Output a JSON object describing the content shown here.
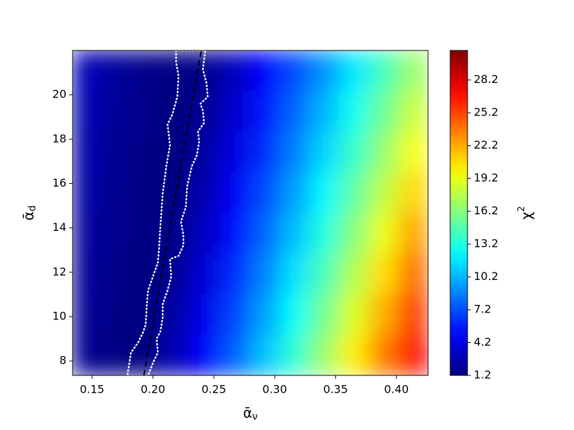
{
  "chart_data": {
    "type": "contour",
    "xlabel": {
      "text": "ᾱ",
      "sub": "ν"
    },
    "ylabel": {
      "text": "ᾱ",
      "sub": "d"
    },
    "colorbar_label": {
      "text": "χ",
      "sup": "2"
    },
    "colormap": "jet",
    "xlim": [
      0.134,
      0.426
    ],
    "ylim": [
      7.35,
      22
    ],
    "clim": [
      1.2,
      30.9
    ],
    "xticks": [
      0.15,
      {
        "value": 0.2,
        "label": "0.20"
      },
      0.25,
      {
        "value": 0.3,
        "label": "0.30"
      },
      0.35,
      {
        "value": 0.4,
        "label": "0.40"
      }
    ],
    "yticks": [
      8,
      10,
      12,
      14,
      16,
      18,
      20
    ],
    "cticks": [
      1.2,
      4.2,
      7.2,
      10.2,
      13.2,
      16.2,
      19.2,
      22.2,
      25.2,
      28.2
    ],
    "z": [
      [
        2.8,
        2.1,
        1.5,
        1.3,
        1.5,
        3.0,
        4.9,
        7.0,
        9.2,
        11.7,
        14.2,
        16.8
      ],
      [
        2.6,
        1.9,
        1.5,
        1.2,
        1.8,
        3.5,
        5.5,
        7.8,
        10.2,
        12.7,
        15.4,
        18.1
      ],
      [
        2.4,
        1.8,
        1.4,
        1.2,
        2.2,
        4.1,
        6.2,
        8.6,
        11.1,
        13.8,
        16.6,
        19.5
      ],
      [
        2.3,
        1.7,
        1.3,
        1.2,
        2.7,
        4.7,
        7.0,
        9.5,
        12.2,
        15.0,
        17.9,
        20.9
      ],
      [
        2.1,
        1.6,
        1.3,
        1.5,
        3.2,
        5.4,
        7.8,
        10.5,
        13.2,
        16.2,
        19.2,
        22.4
      ],
      [
        1.9,
        1.5,
        1.2,
        1.8,
        3.8,
        6.1,
        8.7,
        11.5,
        14.4,
        17.5,
        20.7,
        24.0
      ],
      [
        1.8,
        1.4,
        1.2,
        2.3,
        4.4,
        6.9,
        9.6,
        12.5,
        15.6,
        18.8,
        22.1,
        25.6
      ],
      [
        1.7,
        1.3,
        1.2,
        2.8,
        5.1,
        7.7,
        10.6,
        13.6,
        16.8,
        20.2,
        23.6,
        27.2
      ]
    ],
    "fit_line": {
      "color": "#000000",
      "x": [
        0.1925,
        0.2397
      ],
      "y": [
        7.35,
        22
      ]
    },
    "contour": {
      "color": "#ffffff",
      "x": [
        0.219,
        0.219,
        0.221,
        0.22,
        0.216,
        0.212,
        0.214,
        0.211,
        0.208,
        0.206,
        0.205,
        0.204,
        0.2,
        0.196,
        0.195,
        0.194,
        0.192,
        0.188,
        0.182,
        0.179,
        0.196,
        0.2,
        0.204,
        0.203,
        0.206,
        0.208,
        0.208,
        0.212,
        0.215,
        0.214,
        0.221,
        0.225,
        0.225,
        0.223,
        0.227,
        0.228,
        0.232,
        0.236,
        0.238,
        0.237,
        0.242,
        0.241,
        0.239,
        0.245,
        0.244,
        0.241,
        0.243
      ],
      "y": [
        22.0,
        21.47,
        20.85,
        19.91,
        19.13,
        18.66,
        17.73,
        16.79,
        15.55,
        13.99,
        13.05,
        12.43,
        11.81,
        11.18,
        10.56,
        9.63,
        9.31,
        8.85,
        8.38,
        7.35,
        7.35,
        7.91,
        8.38,
        9.0,
        9.31,
        9.94,
        10.56,
        11.18,
        11.81,
        12.59,
        12.74,
        13.21,
        13.68,
        14.3,
        14.92,
        15.86,
        16.79,
        17.26,
        17.89,
        18.35,
        18.73,
        19.29,
        19.6,
        19.91,
        20.53,
        21.16,
        22.0
      ]
    }
  }
}
